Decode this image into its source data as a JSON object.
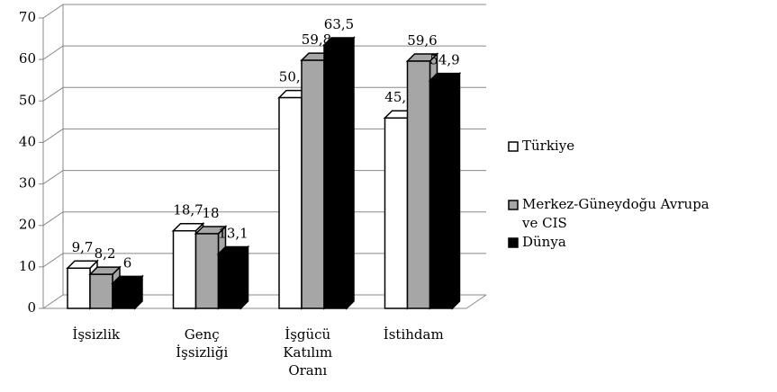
{
  "chart_data": {
    "type": "bar3d",
    "categories": [
      "İşsizlik",
      "Genç İşsizliği",
      "İşgücü Katılım Oranı",
      "İstihdam"
    ],
    "series": [
      {
        "name": "Türkiye",
        "color": "#ffffff",
        "values": [
          9.7,
          18.7,
          50.8,
          45.9
        ],
        "value_labels": [
          "9,7",
          "18,7",
          "50,8",
          "45,9"
        ]
      },
      {
        "name": "Merkez-Güneydoğu Avrupa ve CIS",
        "color": "#a6a6a6",
        "values": [
          8.2,
          18,
          59.8,
          59.6
        ],
        "value_labels": [
          "8,2",
          "18",
          "59,8",
          "59,6"
        ]
      },
      {
        "name": "Dünya",
        "color": "#000000",
        "values": [
          6,
          13.1,
          63.5,
          54.9
        ],
        "value_labels": [
          "6",
          "13,1",
          "63,5",
          "54,9"
        ]
      }
    ],
    "ylim": [
      0,
      70
    ],
    "yticks": [
      0,
      10,
      20,
      30,
      40,
      50,
      60,
      70
    ],
    "grid": true,
    "legend": "right"
  }
}
